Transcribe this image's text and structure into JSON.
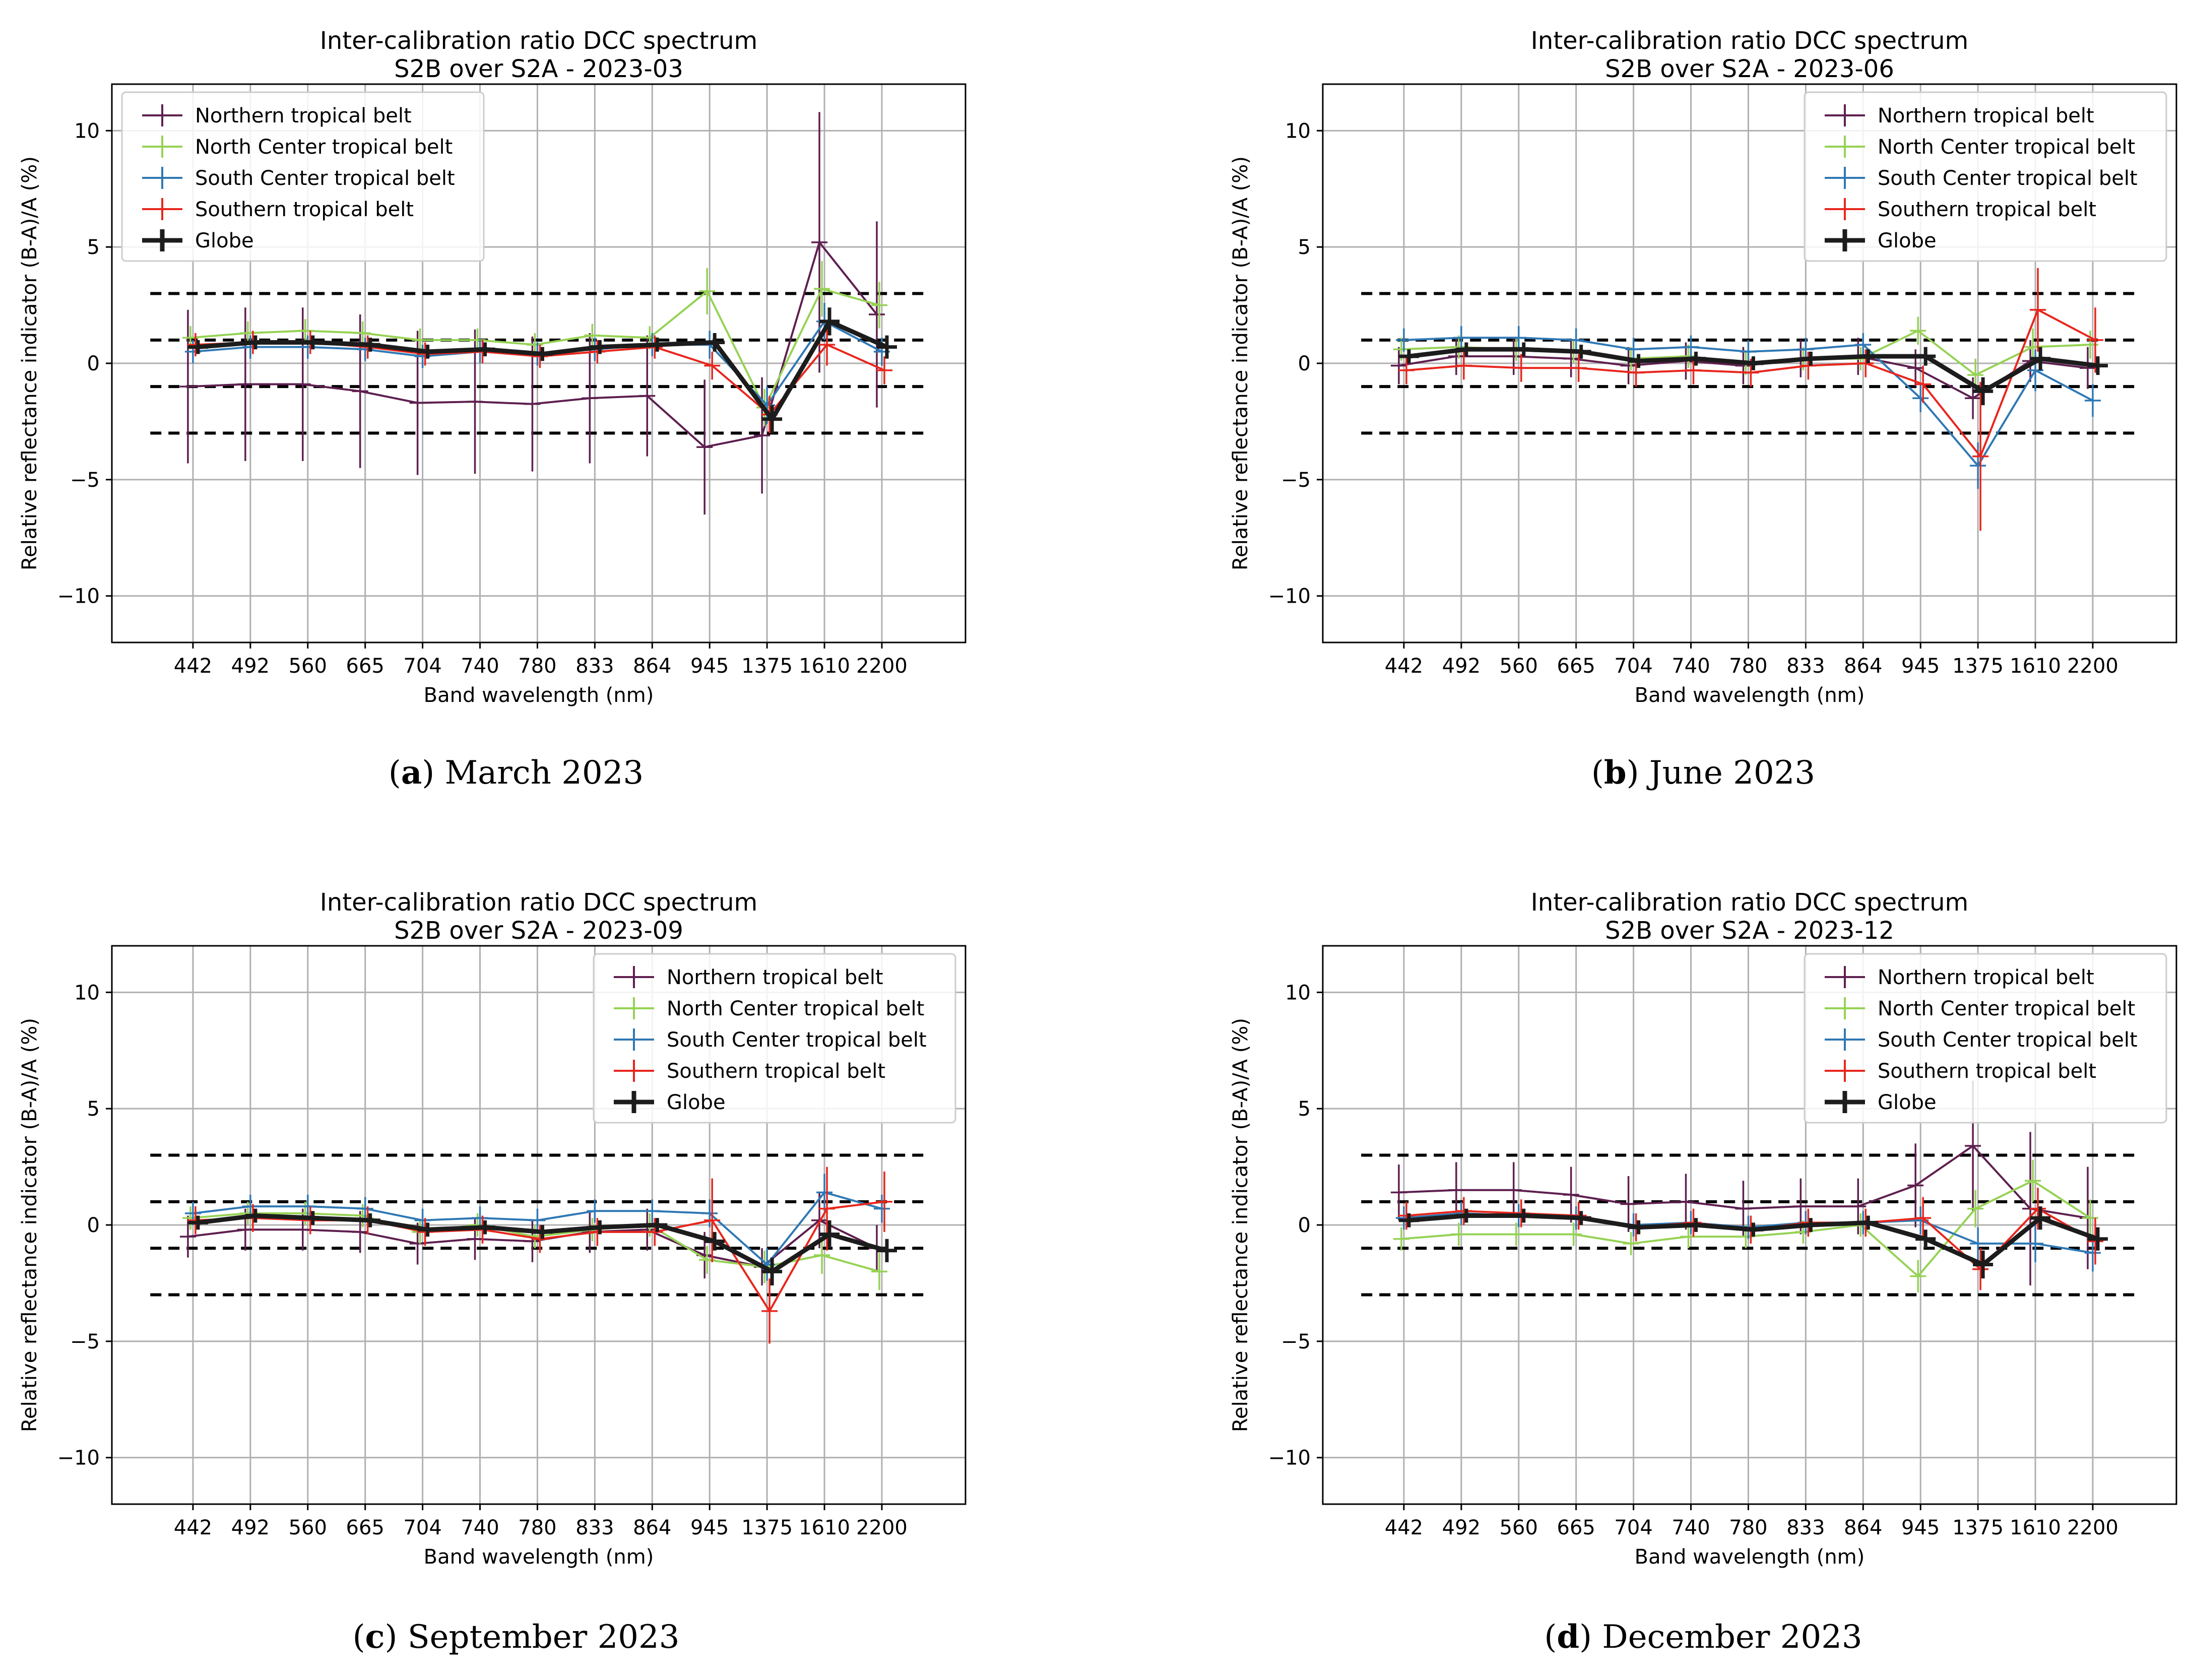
{
  "chart_data": [
    {
      "type": "line",
      "panel_label": "a",
      "caption": "March 2023",
      "title": "Inter-calibration ratio DCC spectrum",
      "subtitle": "S2B over S2A - 2023-03",
      "xlabel": "Band wavelength (nm)",
      "ylabel": "Relative reflectance indicator (B-A)/A (%)",
      "categories": [
        "442",
        "492",
        "560",
        "665",
        "704",
        "740",
        "780",
        "833",
        "864",
        "945",
        "1375",
        "1610",
        "2200"
      ],
      "ylim": [
        -12,
        12
      ],
      "yticks": [
        -10,
        -5,
        0,
        5,
        10
      ],
      "reference_lines": [
        -3,
        -1,
        1,
        3
      ],
      "legend_position": "top-left",
      "series": [
        {
          "name": "Northern tropical belt",
          "color": "#5e1f4f",
          "values": [
            -1.0,
            -0.9,
            -0.9,
            -1.2,
            -1.7,
            -1.65,
            -1.75,
            -1.5,
            -1.4,
            -3.6,
            -3.1,
            5.2,
            2.1
          ],
          "errors": [
            3.3,
            3.3,
            3.3,
            3.3,
            3.1,
            3.1,
            2.9,
            2.8,
            2.6,
            2.9,
            2.5,
            5.6,
            4.0
          ]
        },
        {
          "name": "North Center tropical belt",
          "color": "#96d255",
          "values": [
            1.1,
            1.3,
            1.4,
            1.3,
            1.0,
            1.0,
            0.8,
            1.2,
            1.1,
            3.1,
            -1.9,
            3.2,
            2.5
          ],
          "errors": [
            0.5,
            0.5,
            0.5,
            0.5,
            0.5,
            0.5,
            0.5,
            0.5,
            0.5,
            1.0,
            0.8,
            1.2,
            1.0
          ]
        },
        {
          "name": "South Center tropical belt",
          "color": "#2f78b4",
          "values": [
            0.5,
            0.7,
            0.7,
            0.6,
            0.3,
            0.5,
            0.4,
            0.6,
            0.8,
            0.8,
            -1.8,
            1.8,
            0.5
          ],
          "errors": [
            0.5,
            0.5,
            0.5,
            0.5,
            0.5,
            0.5,
            0.5,
            0.5,
            0.5,
            0.6,
            0.8,
            0.8,
            0.6
          ]
        },
        {
          "name": "Southern tropical belt",
          "color": "#e8261d",
          "values": [
            0.8,
            0.9,
            0.9,
            0.7,
            0.4,
            0.5,
            0.3,
            0.5,
            0.7,
            -0.1,
            -2.2,
            0.8,
            -0.3
          ],
          "errors": [
            0.5,
            0.5,
            0.5,
            0.5,
            0.5,
            0.5,
            0.5,
            0.5,
            0.5,
            0.6,
            0.8,
            0.9,
            0.6
          ]
        },
        {
          "name": "Globe",
          "color": "#1c1c1c",
          "values": [
            0.7,
            0.9,
            0.9,
            0.8,
            0.5,
            0.6,
            0.4,
            0.7,
            0.8,
            0.9,
            -2.4,
            1.8,
            0.7
          ],
          "errors": [
            0.3,
            0.3,
            0.3,
            0.3,
            0.3,
            0.3,
            0.3,
            0.3,
            0.3,
            0.4,
            0.6,
            0.6,
            0.5
          ]
        }
      ]
    },
    {
      "type": "line",
      "panel_label": "b",
      "caption": "June 2023",
      "title": "Inter-calibration ratio DCC spectrum",
      "subtitle": "S2B over S2A - 2023-06",
      "xlabel": "Band wavelength (nm)",
      "ylabel": "Relative reflectance indicator (B-A)/A (%)",
      "categories": [
        "442",
        "492",
        "560",
        "665",
        "704",
        "740",
        "780",
        "833",
        "864",
        "945",
        "1375",
        "1610",
        "2200"
      ],
      "ylim": [
        -12,
        12
      ],
      "yticks": [
        -10,
        -5,
        0,
        5,
        10
      ],
      "reference_lines": [
        -3,
        -1,
        1,
        3
      ],
      "legend_position": "top-right",
      "series": [
        {
          "name": "Northern tropical belt",
          "color": "#5e1f4f",
          "values": [
            -0.1,
            0.3,
            0.3,
            0.2,
            -0.1,
            0.1,
            -0.1,
            0.2,
            0.3,
            -0.2,
            -1.5,
            0.1,
            -0.2
          ],
          "errors": [
            0.8,
            0.8,
            0.8,
            0.8,
            0.8,
            0.8,
            0.8,
            0.8,
            0.8,
            0.8,
            0.9,
            0.9,
            0.9
          ]
        },
        {
          "name": "North Center tropical belt",
          "color": "#96d255",
          "values": [
            0.6,
            0.7,
            0.6,
            0.5,
            0.2,
            0.3,
            0.0,
            0.2,
            0.2,
            1.4,
            -0.5,
            0.7,
            0.8
          ],
          "errors": [
            0.5,
            0.5,
            0.5,
            0.5,
            0.5,
            0.5,
            0.5,
            0.5,
            0.5,
            0.6,
            0.7,
            0.8,
            0.6
          ]
        },
        {
          "name": "South Center tropical belt",
          "color": "#2f78b4",
          "values": [
            1.0,
            1.1,
            1.1,
            1.0,
            0.6,
            0.7,
            0.5,
            0.6,
            0.8,
            -1.5,
            -4.4,
            -0.3,
            -1.6
          ],
          "errors": [
            0.5,
            0.5,
            0.5,
            0.5,
            0.5,
            0.5,
            0.5,
            0.5,
            0.5,
            0.6,
            1.0,
            0.9,
            0.7
          ]
        },
        {
          "name": "Southern tropical belt",
          "color": "#e8261d",
          "values": [
            -0.3,
            -0.1,
            -0.2,
            -0.2,
            -0.4,
            -0.3,
            -0.4,
            -0.1,
            0.0,
            -0.9,
            -4.0,
            2.3,
            1.0
          ],
          "errors": [
            0.6,
            0.6,
            0.6,
            0.6,
            0.6,
            0.6,
            0.6,
            0.6,
            0.6,
            0.8,
            3.2,
            1.8,
            1.4
          ]
        },
        {
          "name": "Globe",
          "color": "#1c1c1c",
          "values": [
            0.3,
            0.6,
            0.6,
            0.5,
            0.1,
            0.2,
            0.0,
            0.2,
            0.3,
            0.3,
            -1.2,
            0.2,
            -0.1
          ],
          "errors": [
            0.3,
            0.3,
            0.3,
            0.3,
            0.3,
            0.3,
            0.3,
            0.3,
            0.3,
            0.4,
            0.6,
            0.5,
            0.4
          ]
        }
      ]
    },
    {
      "type": "line",
      "panel_label": "c",
      "caption": "September 2023",
      "title": "Inter-calibration ratio DCC spectrum",
      "subtitle": "S2B over S2A - 2023-09",
      "xlabel": "Band wavelength (nm)",
      "ylabel": "Relative reflectance indicator (B-A)/A (%)",
      "categories": [
        "442",
        "492",
        "560",
        "665",
        "704",
        "740",
        "780",
        "833",
        "864",
        "945",
        "1375",
        "1610",
        "2200"
      ],
      "ylim": [
        -12,
        12
      ],
      "yticks": [
        -10,
        -5,
        0,
        5,
        10
      ],
      "reference_lines": [
        -3,
        -1,
        1,
        3
      ],
      "legend_position": "top-right",
      "series": [
        {
          "name": "Northern tropical belt",
          "color": "#5e1f4f",
          "values": [
            -0.5,
            -0.2,
            -0.2,
            -0.3,
            -0.8,
            -0.6,
            -0.7,
            -0.3,
            -0.2,
            -1.3,
            -1.8,
            0.2,
            -1.0
          ],
          "errors": [
            0.9,
            0.9,
            0.9,
            0.9,
            0.9,
            0.9,
            0.9,
            0.9,
            0.9,
            1.0,
            0.8,
            1.2,
            1.0
          ]
        },
        {
          "name": "North Center tropical belt",
          "color": "#96d255",
          "values": [
            0.3,
            0.5,
            0.5,
            0.4,
            -0.3,
            0.0,
            -0.5,
            -0.2,
            0.0,
            -1.5,
            -1.8,
            -1.3,
            -2.0
          ],
          "errors": [
            0.5,
            0.5,
            0.5,
            0.5,
            0.5,
            0.5,
            0.5,
            0.5,
            0.5,
            0.6,
            0.7,
            0.8,
            0.8
          ]
        },
        {
          "name": "South Center tropical belt",
          "color": "#2f78b4",
          "values": [
            0.5,
            0.8,
            0.8,
            0.7,
            0.2,
            0.3,
            0.2,
            0.6,
            0.6,
            0.5,
            -1.7,
            1.4,
            0.7
          ],
          "errors": [
            0.5,
            0.5,
            0.5,
            0.5,
            0.5,
            0.5,
            0.5,
            0.5,
            0.5,
            0.6,
            0.7,
            0.8,
            0.6
          ]
        },
        {
          "name": "Southern tropical belt",
          "color": "#e8261d",
          "values": [
            0.2,
            0.3,
            0.2,
            0.2,
            -0.3,
            -0.2,
            -0.6,
            -0.3,
            -0.3,
            0.2,
            -3.7,
            0.7,
            1.0
          ],
          "errors": [
            0.6,
            0.6,
            0.6,
            0.6,
            0.6,
            0.6,
            0.6,
            0.6,
            0.6,
            1.8,
            1.4,
            1.8,
            1.3
          ]
        },
        {
          "name": "Globe",
          "color": "#1c1c1c",
          "values": [
            0.1,
            0.4,
            0.3,
            0.2,
            -0.2,
            -0.1,
            -0.3,
            -0.1,
            0.0,
            -0.7,
            -2.0,
            -0.4,
            -1.1
          ],
          "errors": [
            0.3,
            0.3,
            0.3,
            0.3,
            0.3,
            0.3,
            0.3,
            0.3,
            0.3,
            0.4,
            0.6,
            0.6,
            0.5
          ]
        }
      ]
    },
    {
      "type": "line",
      "panel_label": "d",
      "caption": "December 2023",
      "title": "Inter-calibration ratio DCC spectrum",
      "subtitle": "S2B over S2A - 2023-12",
      "xlabel": "Band wavelength (nm)",
      "ylabel": "Relative reflectance indicator (B-A)/A (%)",
      "categories": [
        "442",
        "492",
        "560",
        "665",
        "704",
        "740",
        "780",
        "833",
        "864",
        "945",
        "1375",
        "1610",
        "2200"
      ],
      "ylim": [
        -12,
        12
      ],
      "yticks": [
        -10,
        -5,
        0,
        5,
        10
      ],
      "reference_lines": [
        -3,
        -1,
        1,
        3
      ],
      "legend_position": "top-right",
      "series": [
        {
          "name": "Northern tropical belt",
          "color": "#5e1f4f",
          "values": [
            1.4,
            1.5,
            1.5,
            1.3,
            0.9,
            1.0,
            0.7,
            0.8,
            0.8,
            1.7,
            3.4,
            0.7,
            0.3
          ],
          "errors": [
            1.2,
            1.2,
            1.2,
            1.2,
            1.2,
            1.2,
            1.2,
            1.2,
            1.2,
            1.8,
            2.8,
            3.3,
            2.2
          ]
        },
        {
          "name": "North Center tropical belt",
          "color": "#96d255",
          "values": [
            -0.6,
            -0.4,
            -0.4,
            -0.4,
            -0.8,
            -0.5,
            -0.5,
            -0.3,
            0.0,
            -2.2,
            0.7,
            1.9,
            0.3
          ],
          "errors": [
            0.5,
            0.5,
            0.5,
            0.5,
            0.5,
            0.5,
            0.5,
            0.5,
            0.5,
            0.7,
            0.8,
            0.9,
            0.8
          ]
        },
        {
          "name": "South Center tropical belt",
          "color": "#2f78b4",
          "values": [
            0.3,
            0.5,
            0.4,
            0.3,
            0.0,
            0.1,
            -0.1,
            0.1,
            0.1,
            0.2,
            -0.8,
            -0.8,
            -1.2
          ],
          "errors": [
            0.5,
            0.5,
            0.5,
            0.5,
            0.5,
            0.5,
            0.5,
            0.5,
            0.5,
            0.6,
            0.7,
            0.8,
            0.8
          ]
        },
        {
          "name": "Southern tropical belt",
          "color": "#e8261d",
          "values": [
            0.4,
            0.6,
            0.5,
            0.4,
            -0.1,
            0.1,
            -0.2,
            0.1,
            0.1,
            0.3,
            -1.9,
            0.7,
            -0.7
          ],
          "errors": [
            0.6,
            0.6,
            0.6,
            0.6,
            0.6,
            0.6,
            0.6,
            0.6,
            0.6,
            0.9,
            0.9,
            0.9,
            1.0
          ]
        },
        {
          "name": "Globe",
          "color": "#1c1c1c",
          "values": [
            0.2,
            0.4,
            0.4,
            0.3,
            -0.1,
            0.0,
            -0.2,
            0.0,
            0.1,
            -0.6,
            -1.7,
            0.3,
            -0.6
          ],
          "errors": [
            0.3,
            0.3,
            0.3,
            0.3,
            0.3,
            0.3,
            0.3,
            0.3,
            0.3,
            0.4,
            0.6,
            0.5,
            0.5
          ]
        }
      ]
    }
  ]
}
